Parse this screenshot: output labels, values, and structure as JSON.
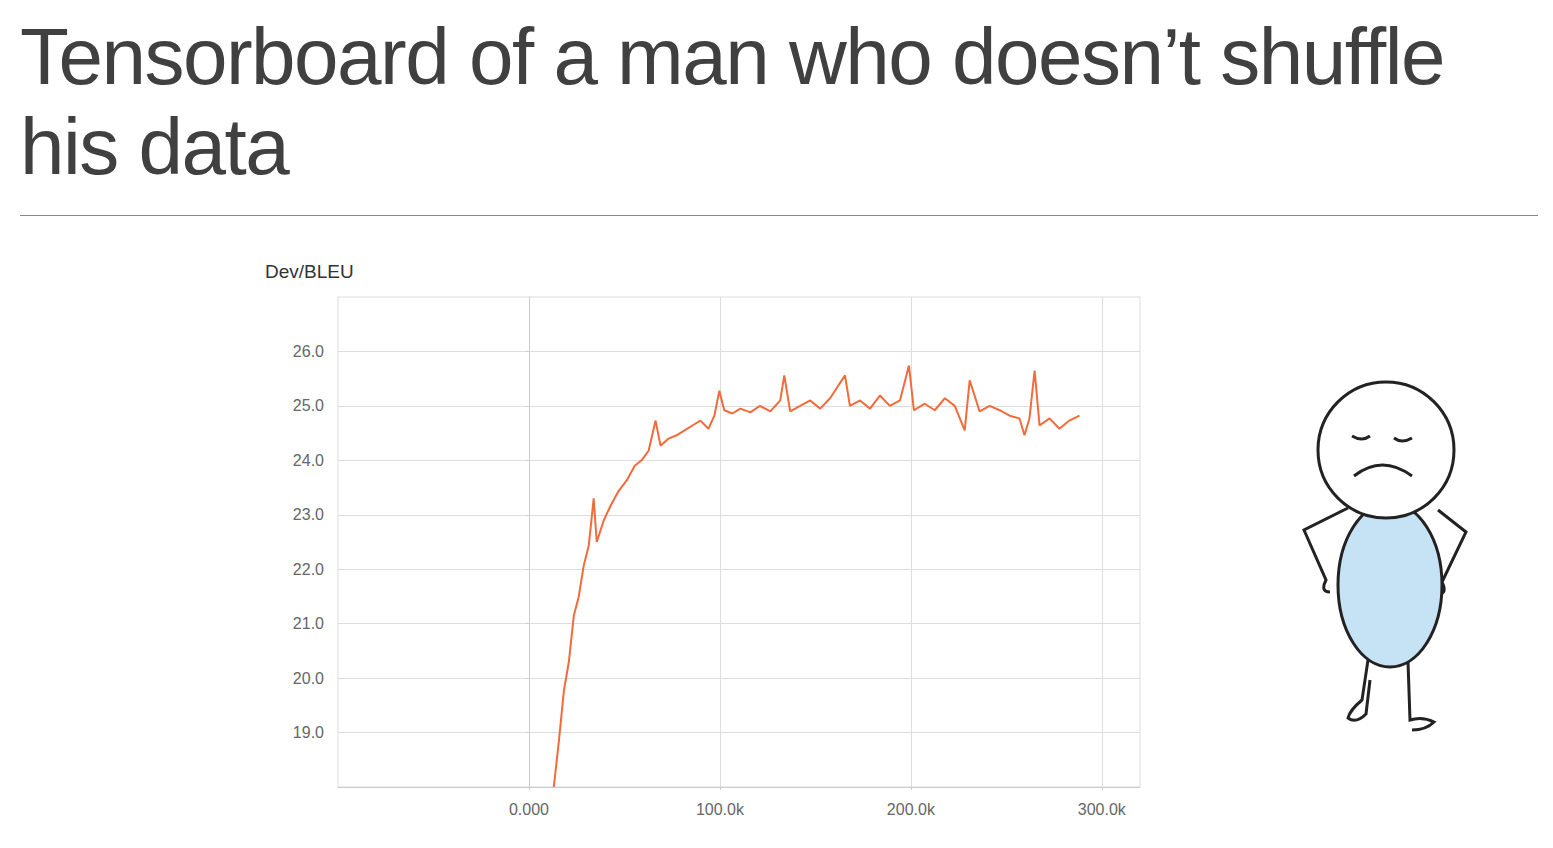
{
  "heading": "Tensorboard of a man who doesn’t shuffle his data",
  "chart_data": {
    "type": "line",
    "title": "Dev/BLEU",
    "color": "#f26b3a",
    "line_style": "solid",
    "grid": true,
    "xlim": [
      -100000,
      320000
    ],
    "xticks": [
      {
        "value": 0,
        "label": "0.000"
      },
      {
        "value": 100000,
        "label": "100.0k"
      },
      {
        "value": 200000,
        "label": "200.0k"
      },
      {
        "value": 300000,
        "label": "300.0k"
      }
    ],
    "ylim": [
      18,
      27
    ],
    "yticks": [
      {
        "value": 19,
        "label": "19.0"
      },
      {
        "value": 20,
        "label": "20.0"
      },
      {
        "value": 21,
        "label": "21.0"
      },
      {
        "value": 22,
        "label": "22.0"
      },
      {
        "value": 23,
        "label": "23.0"
      },
      {
        "value": 24,
        "label": "24.0"
      },
      {
        "value": 25,
        "label": "25.0"
      },
      {
        "value": 26,
        "label": "26.0"
      }
    ],
    "x": [
      13000,
      15700,
      18300,
      20900,
      23500,
      26100,
      28700,
      31300,
      33900,
      35500,
      39200,
      42800,
      47000,
      51200,
      55400,
      59000,
      62700,
      66300,
      68900,
      73100,
      77300,
      81500,
      85600,
      89800,
      94000,
      97100,
      99700,
      102300,
      106500,
      110700,
      115900,
      121000,
      126400,
      131600,
      133700,
      136800,
      142000,
      147300,
      152500,
      157700,
      165500,
      168100,
      173400,
      178600,
      183800,
      189000,
      194300,
      199000,
      201600,
      207300,
      212500,
      217800,
      223000,
      228200,
      230800,
      236000,
      241300,
      246500,
      251700,
      256900,
      259500,
      262100,
      264800,
      267400,
      272600,
      277800,
      283000,
      288300
    ],
    "values": [
      18.0,
      18.85,
      19.77,
      20.3,
      21.15,
      21.5,
      22.07,
      22.43,
      23.3,
      22.5,
      22.9,
      23.17,
      23.44,
      23.63,
      23.9,
      24.0,
      24.18,
      24.73,
      24.27,
      24.4,
      24.46,
      24.55,
      24.64,
      24.73,
      24.58,
      24.82,
      25.28,
      24.92,
      24.86,
      24.95,
      24.88,
      25.0,
      24.9,
      25.1,
      25.56,
      24.9,
      25.0,
      25.1,
      24.95,
      25.14,
      25.56,
      25.0,
      25.1,
      24.95,
      25.19,
      25.0,
      25.1,
      25.74,
      24.92,
      25.04,
      24.92,
      25.14,
      25.0,
      24.55,
      25.47,
      24.9,
      25.0,
      24.92,
      24.82,
      24.77,
      24.46,
      24.77,
      25.65,
      24.64,
      24.77,
      24.58,
      24.73,
      24.82
    ]
  }
}
